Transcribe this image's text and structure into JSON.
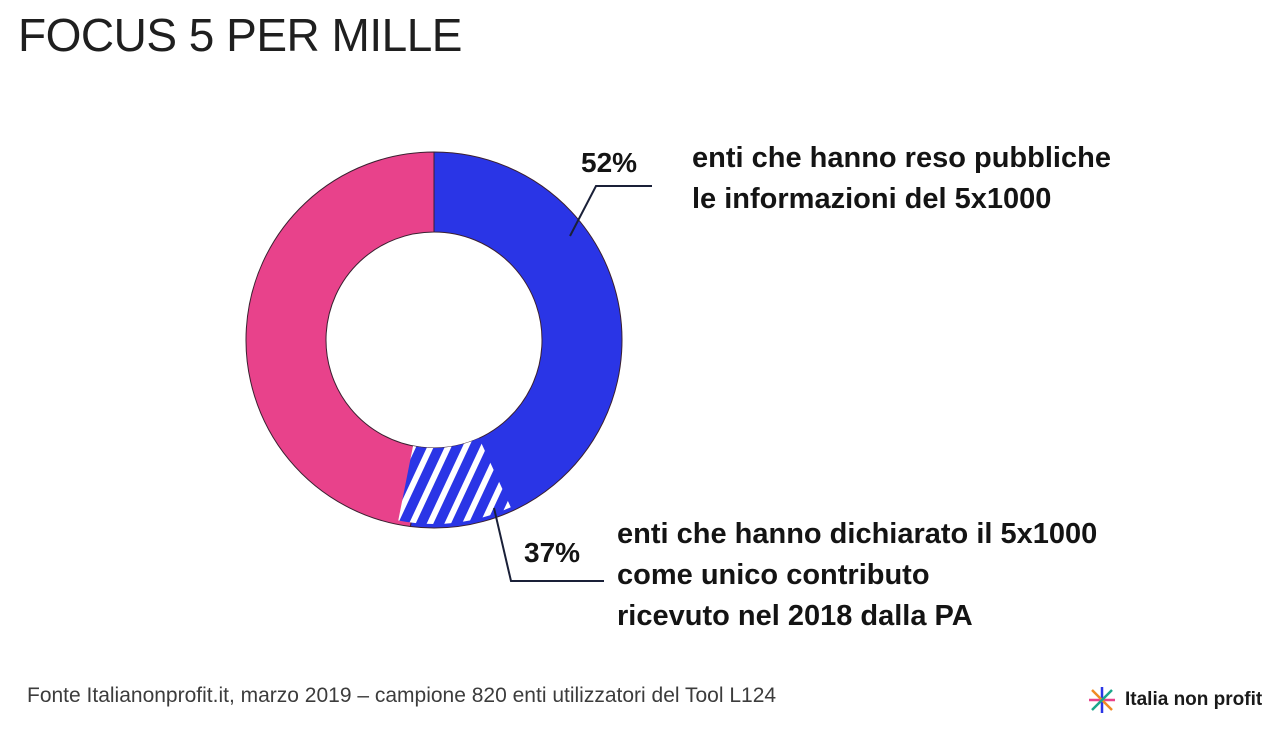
{
  "title": "FOCUS 5 PER MILLE",
  "colors": {
    "blue": "#2a35e6",
    "pink": "#e8428b",
    "stripe": "#ffffff",
    "leader": "#1a2038"
  },
  "chart_data": {
    "type": "pie",
    "style": "donut",
    "slices": [
      {
        "value": 52,
        "label": "52%",
        "description_lines": [
          "enti che hanno reso pubbliche",
          "le informazioni del 5x1000"
        ],
        "fill": "blue"
      },
      {
        "value": 48,
        "label": "",
        "fill": "pink"
      }
    ],
    "highlight": {
      "value": 37,
      "label": "37%",
      "description_lines": [
        "enti che hanno dichiarato il 5x1000",
        "come unico contributo",
        "ricevuto nel 2018 dalla PA"
      ],
      "fill": "blue-with-white-hatching"
    }
  },
  "footer": {
    "source": "Fonte Italianonprofit.it, marzo 2019 – campione 820 enti utilizzatori del Tool L124",
    "logo_text": "Italia non profit"
  }
}
